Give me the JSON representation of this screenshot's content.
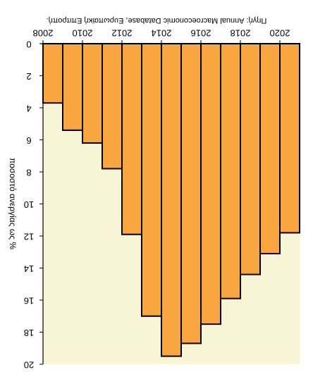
{
  "chart_data": {
    "type": "bar",
    "orientation": "upside-down",
    "source": "Πηγή: Annual Macroeconomic Database, Ευρωπαϊκή Επιτροπή.",
    "ylabel": "ποσοστό ανεργίας ως %",
    "xlabel": "",
    "categories": [
      "2008",
      "2009",
      "2010",
      "2011",
      "2012",
      "2013",
      "2014",
      "2015",
      "2016",
      "2017",
      "2018",
      "2019",
      "2020"
    ],
    "x_tick_labels": [
      "2008",
      "2010",
      "2012",
      "2014",
      "2016",
      "2018",
      "2020"
    ],
    "values": [
      3.7,
      5.4,
      6.2,
      7.8,
      11.9,
      17.0,
      19.5,
      18.7,
      17.5,
      15.9,
      14.4,
      13.1,
      11.8
    ],
    "ylim": [
      0,
      20
    ],
    "y_ticks": [
      0,
      2,
      4,
      6,
      8,
      10,
      12,
      14,
      16,
      18,
      20
    ],
    "bar_color": "#f9a640",
    "plot_background": "#f7f5d6",
    "grid": false
  }
}
